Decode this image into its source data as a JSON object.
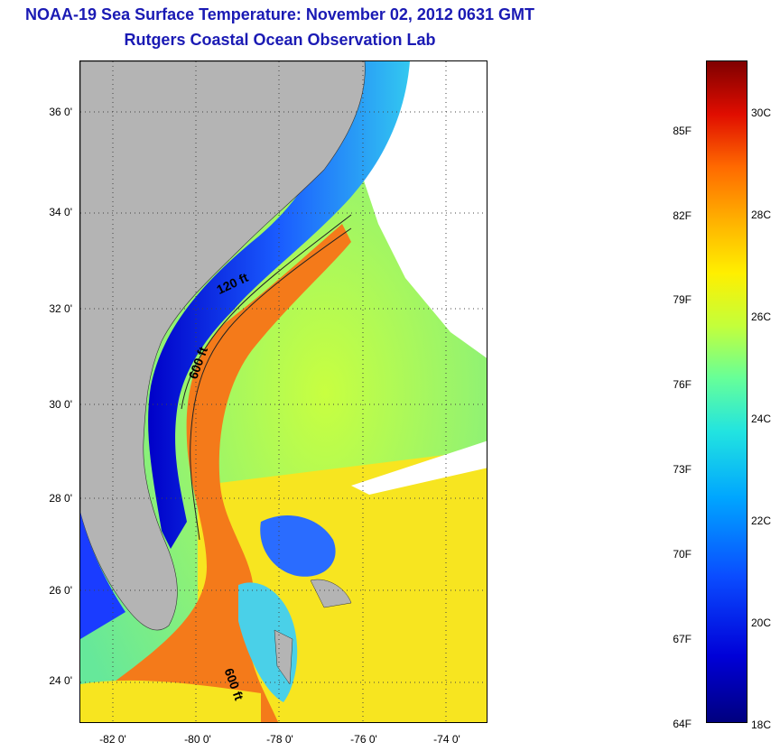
{
  "title_line1": "NOAA-19 Sea Surface Temperature:  November 02, 2012 0631 GMT",
  "title_line2": "Rutgers Coastal Ocean Observation Lab",
  "lat_ticks": [
    "36 0'",
    "34 0'",
    "32 0'",
    "30 0'",
    "28 0'",
    "26 0'",
    "24 0'"
  ],
  "lon_ticks": [
    "-82 0'",
    "-80 0'",
    "-78 0'",
    "-76 0'",
    "-74 0'"
  ],
  "contour_labels": [
    "120 ft",
    "600 ft",
    "600 ft"
  ],
  "colorbar": {
    "fahrenheit_labels": [
      "85F",
      "82F",
      "79F",
      "76F",
      "73F",
      "70F",
      "67F",
      "64F"
    ],
    "celsius_labels": [
      "30C",
      "28C",
      "26C",
      "24C",
      "22C",
      "20C",
      "18C"
    ],
    "colors": [
      "#00007f",
      "#0000d8",
      "#0a4cff",
      "#00a6ff",
      "#22e4e0",
      "#66ff99",
      "#c4ff3a",
      "#ffef00",
      "#ffb000",
      "#ff6a00",
      "#e00d00",
      "#7f0000"
    ]
  },
  "map_colors": {
    "land": "#b4b4b4",
    "cloud": "#ffffff",
    "gulf_stream": "#f47a1a",
    "shelf": "#1a3cff",
    "offshore": "#9be35a"
  }
}
